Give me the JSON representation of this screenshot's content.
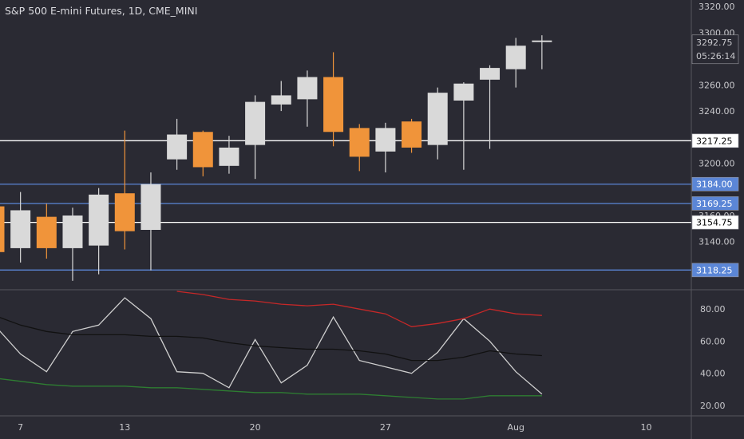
{
  "title": "S&P 500 E-mini Futures, 1D, CME_MINI",
  "colors": {
    "background": "#2a2a33",
    "up_candle": "#d9d9d9",
    "down_candle": "#f0943a",
    "h_line_white": "#ffffff",
    "h_line_blue": "#5b86d6",
    "osc_white": "#cfcfcf",
    "osc_black": "#111111",
    "osc_red": "#c62828",
    "osc_green": "#2e7d32"
  },
  "chart_data": [
    {
      "type": "candlestick",
      "title": "S&P 500 E-mini Futures, 1D, CME_MINI",
      "ylim": [
        3105,
        3325
      ],
      "y_ticks": [
        3140,
        3160,
        3200,
        3240,
        3260,
        3280,
        3300,
        3320
      ],
      "x_tick_labels": [
        "7",
        "13",
        "20",
        "27",
        "Aug",
        "10"
      ],
      "candles": [
        {
          "o": 3167,
          "h": 3171,
          "l": 3128,
          "c": 3132
        },
        {
          "o": 3135,
          "h": 3178,
          "l": 3124,
          "c": 3164
        },
        {
          "o": 3159,
          "h": 3169,
          "l": 3127,
          "c": 3135
        },
        {
          "o": 3135,
          "h": 3166,
          "l": 3110,
          "c": 3160
        },
        {
          "o": 3137,
          "h": 3181,
          "l": 3115,
          "c": 3176
        },
        {
          "o": 3177,
          "h": 3225,
          "l": 3134,
          "c": 3148
        },
        {
          "o": 3149,
          "h": 3193,
          "l": 3118,
          "c": 3184
        },
        {
          "o": 3203,
          "h": 3234,
          "l": 3195,
          "c": 3222
        },
        {
          "o": 3224,
          "h": 3225,
          "l": 3190,
          "c": 3197
        },
        {
          "o": 3198,
          "h": 3221,
          "l": 3192,
          "c": 3212
        },
        {
          "o": 3214,
          "h": 3252,
          "l": 3188,
          "c": 3247
        },
        {
          "o": 3245,
          "h": 3263,
          "l": 3240,
          "c": 3252
        },
        {
          "o": 3249,
          "h": 3271,
          "l": 3228,
          "c": 3266
        },
        {
          "o": 3266,
          "h": 3285,
          "l": 3213,
          "c": 3224
        },
        {
          "o": 3227,
          "h": 3230,
          "l": 3194,
          "c": 3205
        },
        {
          "o": 3209,
          "h": 3231,
          "l": 3193,
          "c": 3227
        },
        {
          "o": 3232,
          "h": 3234,
          "l": 3208,
          "c": 3212
        },
        {
          "o": 3214,
          "h": 3258,
          "l": 3203,
          "c": 3254
        },
        {
          "o": 3248,
          "h": 3262,
          "l": 3195,
          "c": 3261
        },
        {
          "o": 3264,
          "h": 3275,
          "l": 3211,
          "c": 3273
        },
        {
          "o": 3272,
          "h": 3296,
          "l": 3258,
          "c": 3290
        },
        {
          "o": 3293,
          "h": 3298,
          "l": 3272,
          "c": 3294
        }
      ],
      "h_lines": [
        {
          "value": 3217.25,
          "label": "3217.25",
          "color": "white"
        },
        {
          "value": 3184.0,
          "label": "3184.00",
          "color": "blue"
        },
        {
          "value": 3169.25,
          "label": "3169.25",
          "color": "blue"
        },
        {
          "value": 3154.75,
          "label": "3154.75",
          "color": "white"
        },
        {
          "value": 3118.25,
          "label": "3118.25",
          "color": "blue"
        }
      ],
      "last_price": {
        "value": 3292.75,
        "label": "3292.75",
        "countdown": "05:26:14"
      }
    },
    {
      "type": "line",
      "ylim": [
        14,
        92
      ],
      "y_ticks": [
        20,
        40,
        60,
        80
      ],
      "y_tick_labels": [
        "20.00",
        "40.00",
        "60.00",
        "80.00"
      ],
      "series": [
        {
          "color": "white",
          "values": [
            70,
            52,
            41,
            66,
            70,
            87,
            74,
            41,
            40,
            31,
            61,
            34,
            45,
            75,
            48,
            44,
            40,
            53,
            74,
            60,
            41,
            27
          ]
        },
        {
          "color": "black",
          "values": [
            76,
            70,
            66,
            64,
            64,
            64,
            63,
            63,
            62,
            59,
            57,
            56,
            55,
            55,
            54,
            52,
            48,
            48,
            50,
            54,
            52,
            51
          ]
        },
        {
          "color": "red",
          "values": [
            null,
            null,
            null,
            null,
            null,
            null,
            null,
            91,
            89,
            86,
            85,
            83,
            82,
            83,
            80,
            77,
            69,
            71,
            74,
            80,
            77,
            76
          ]
        },
        {
          "color": "green",
          "values": [
            37,
            35,
            33,
            32,
            32,
            32,
            31,
            31,
            30,
            29,
            28,
            28,
            27,
            27,
            27,
            26,
            25,
            24,
            24,
            26,
            26,
            26
          ]
        }
      ]
    }
  ]
}
